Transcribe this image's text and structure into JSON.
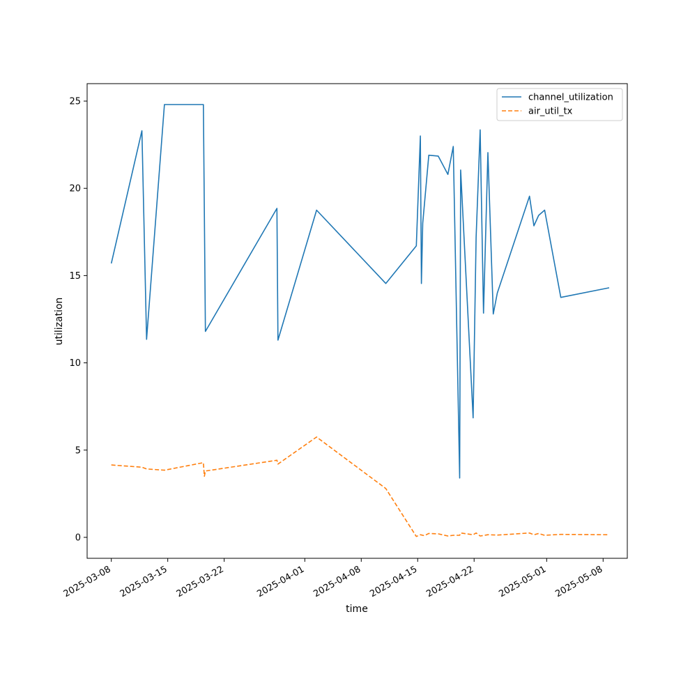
{
  "chart_data": {
    "type": "line",
    "title": "",
    "xlabel": "time",
    "ylabel": "utilization",
    "x_axis_type": "date",
    "xlim": [
      "2025-03-05",
      "2025-05-11"
    ],
    "ylim": [
      -1.2,
      26
    ],
    "grid": false,
    "legend_position": "top-right",
    "x_ticks": [
      "2025-03-08",
      "2025-03-15",
      "2025-03-22",
      "2025-04-01",
      "2025-04-08",
      "2025-04-15",
      "2025-04-22",
      "2025-05-01",
      "2025-05-08"
    ],
    "y_ticks": [
      0,
      5,
      10,
      15,
      20,
      25
    ],
    "series": [
      {
        "name": "channel_utilization",
        "color": "#1f77b4",
        "dash": "solid",
        "points": [
          [
            "2025-03-08T00:00",
            15.7
          ],
          [
            "2025-03-11T19:00",
            23.3
          ],
          [
            "2025-03-12T09:00",
            11.35
          ],
          [
            "2025-03-14T14:00",
            24.8
          ],
          [
            "2025-03-19T10:00",
            24.8
          ],
          [
            "2025-03-19T16:00",
            11.8
          ],
          [
            "2025-03-28T13:00",
            18.85
          ],
          [
            "2025-03-28T16:00",
            11.3
          ],
          [
            "2025-04-02T11:00",
            18.75
          ],
          [
            "2025-04-11T01:00",
            14.55
          ],
          [
            "2025-04-14T20:00",
            16.7
          ],
          [
            "2025-04-15T08:00",
            23.0
          ],
          [
            "2025-04-15T11:00",
            14.55
          ],
          [
            "2025-04-15T15:00",
            18.0
          ],
          [
            "2025-04-16T09:00",
            21.9
          ],
          [
            "2025-04-17T13:00",
            21.85
          ],
          [
            "2025-04-18T18:00",
            20.8
          ],
          [
            "2025-04-19T10:00",
            22.4
          ],
          [
            "2025-04-20T05:00",
            3.4
          ],
          [
            "2025-04-20T08:00",
            21.05
          ],
          [
            "2025-04-21T21:00",
            6.85
          ],
          [
            "2025-04-22T06:00",
            17.2
          ],
          [
            "2025-04-22T18:00",
            23.35
          ],
          [
            "2025-04-23T04:00",
            12.85
          ],
          [
            "2025-04-23T17:00",
            22.05
          ],
          [
            "2025-04-24T09:00",
            12.8
          ],
          [
            "2025-04-24T21:00",
            14.0
          ],
          [
            "2025-04-28T21:00",
            19.55
          ],
          [
            "2025-04-29T10:00",
            17.85
          ],
          [
            "2025-04-30T00:00",
            18.45
          ],
          [
            "2025-04-30T18:00",
            18.75
          ],
          [
            "2025-05-02T18:00",
            13.75
          ],
          [
            "2025-05-08T18:00",
            14.3
          ]
        ]
      },
      {
        "name": "air_util_tx",
        "color": "#ff7f0e",
        "dash": "dashed",
        "points": [
          [
            "2025-03-08T00:00",
            4.15
          ],
          [
            "2025-03-11T19:00",
            4.02
          ],
          [
            "2025-03-12T09:00",
            3.92
          ],
          [
            "2025-03-14T14:00",
            3.85
          ],
          [
            "2025-03-19T10:00",
            4.28
          ],
          [
            "2025-03-19T13:00",
            3.5
          ],
          [
            "2025-03-19T16:00",
            3.8
          ],
          [
            "2025-03-28T13:00",
            4.42
          ],
          [
            "2025-03-28T16:00",
            4.2
          ],
          [
            "2025-04-02T11:00",
            5.75
          ],
          [
            "2025-04-11T01:00",
            2.8
          ],
          [
            "2025-04-14T20:00",
            0.05
          ],
          [
            "2025-04-15T08:00",
            0.15
          ],
          [
            "2025-04-15T20:00",
            0.1
          ],
          [
            "2025-04-16T09:00",
            0.22
          ],
          [
            "2025-04-17T13:00",
            0.2
          ],
          [
            "2025-04-18T18:00",
            0.08
          ],
          [
            "2025-04-19T10:00",
            0.12
          ],
          [
            "2025-04-20T05:00",
            0.12
          ],
          [
            "2025-04-20T08:00",
            0.25
          ],
          [
            "2025-04-21T21:00",
            0.15
          ],
          [
            "2025-04-22T06:00",
            0.25
          ],
          [
            "2025-04-22T18:00",
            0.08
          ],
          [
            "2025-04-23T17:00",
            0.15
          ],
          [
            "2025-04-24T21:00",
            0.13
          ],
          [
            "2025-04-28T21:00",
            0.25
          ],
          [
            "2025-04-29T10:00",
            0.15
          ],
          [
            "2025-04-30T00:00",
            0.22
          ],
          [
            "2025-04-30T18:00",
            0.12
          ],
          [
            "2025-05-02T18:00",
            0.17
          ],
          [
            "2025-05-08T18:00",
            0.15
          ]
        ]
      }
    ]
  }
}
